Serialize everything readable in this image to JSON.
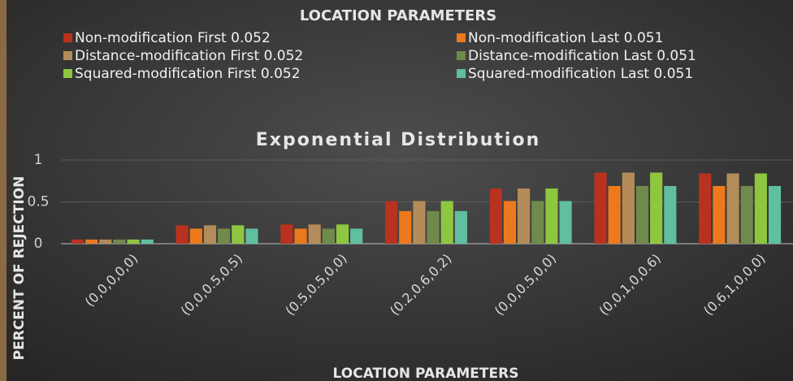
{
  "chart_data": {
    "type": "bar",
    "title": "Exponential Distribution",
    "legend_title": "LOCATION PARAMETERS",
    "x_label": "LOCATION PARAMETERS",
    "y_label": "PERCENT OF REJECTION",
    "categories": [
      "(0,0,0,0,0)",
      "(0,0,0.5,0.5)",
      "(0.5,0.5,0,0)",
      "(0.2,0.6,0.2)",
      "(0,0,0.5,0,0)",
      "(0,0,1,0,0.6)",
      "(0.6,1,0,0,0)"
    ],
    "series": [
      {
        "name": "Non-modification First 0.052",
        "color": "#b8321f",
        "values": [
          0.05,
          0.22,
          0.23,
          0.51,
          0.66,
          0.85,
          0.84
        ]
      },
      {
        "name": "Non-modification Last 0.051",
        "color": "#ec7a1c",
        "values": [
          0.05,
          0.18,
          0.18,
          0.39,
          0.51,
          0.69,
          0.69
        ]
      },
      {
        "name": "Distance-modification First 0.052",
        "color": "#b38c5a",
        "values": [
          0.05,
          0.22,
          0.23,
          0.51,
          0.66,
          0.85,
          0.84
        ]
      },
      {
        "name": "Distance-modification Last 0.051",
        "color": "#6f8a4b",
        "values": [
          0.05,
          0.18,
          0.18,
          0.39,
          0.51,
          0.69,
          0.69
        ]
      },
      {
        "name": "Squared-modification First 0.052",
        "color": "#8ec63f",
        "values": [
          0.05,
          0.22,
          0.23,
          0.51,
          0.66,
          0.85,
          0.84
        ]
      },
      {
        "name": "Squared-modification Last 0.051",
        "color": "#5fbf9f",
        "values": [
          0.05,
          0.18,
          0.18,
          0.39,
          0.51,
          0.69,
          0.69
        ]
      }
    ],
    "ylim": [
      0,
      1
    ],
    "yticks": [
      0,
      0.5,
      1
    ],
    "grid": true
  }
}
